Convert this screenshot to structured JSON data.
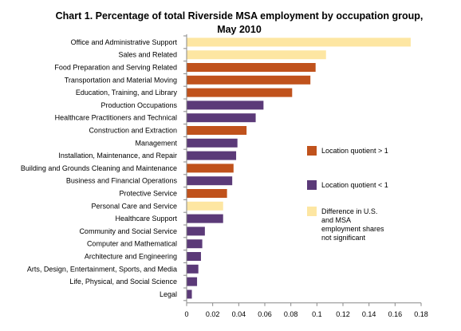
{
  "chart_data": {
    "type": "bar",
    "orientation": "horizontal",
    "title_line1": "Chart 1. Percentage of total Riverside MSA employment by occupation group,",
    "title_line2": "May 2010",
    "categories": [
      "Office and Administrative Support",
      "Sales and Related",
      "Food Preparation and Serving Related",
      "Transportation and Material Moving",
      "Education, Training, and Library",
      "Production Occupations",
      "Healthcare Practitioners and Technical",
      "Construction and Extraction",
      "Management",
      "Installation, Maintenance, and Repair",
      "Building and Grounds Cleaning and Maintenance",
      "Business and Financial Operations",
      "Protective Service",
      "Personal Care and Service",
      "Healthcare Support",
      "Community and Social Service",
      "Computer and Mathematical",
      "Architecture and Engineering",
      "Arts, Design, Entertainment, Sports, and Media",
      "Life, Physical, and Social Science",
      "Legal"
    ],
    "values": [
      0.172,
      0.107,
      0.099,
      0.095,
      0.081,
      0.059,
      0.053,
      0.046,
      0.039,
      0.038,
      0.036,
      0.035,
      0.031,
      0.028,
      0.028,
      0.014,
      0.012,
      0.011,
      0.009,
      0.008,
      0.004
    ],
    "groups": [
      "ns",
      "ns",
      "gt1",
      "gt1",
      "gt1",
      "lt1",
      "lt1",
      "gt1",
      "lt1",
      "lt1",
      "gt1",
      "lt1",
      "gt1",
      "ns",
      "lt1",
      "lt1",
      "lt1",
      "lt1",
      "lt1",
      "lt1",
      "lt1"
    ],
    "xlim": [
      0,
      0.18
    ],
    "xticks": [
      "0",
      "0.02",
      "0.04",
      "0.06",
      "0.08",
      "0.1",
      "0.12",
      "0.14",
      "0.16",
      "0.18"
    ],
    "grid": false,
    "legend_position": "right",
    "legend": [
      {
        "key": "gt1",
        "lines": [
          "Location quotient > 1"
        ],
        "color": "#c0521c"
      },
      {
        "key": "lt1",
        "lines": [
          "Location quotient < 1"
        ],
        "color": "#5b3a78"
      },
      {
        "key": "ns",
        "lines": [
          "Difference in U.S.",
          "and MSA",
          "employment shares",
          "not significant"
        ],
        "color": "#fde6a2"
      }
    ]
  }
}
